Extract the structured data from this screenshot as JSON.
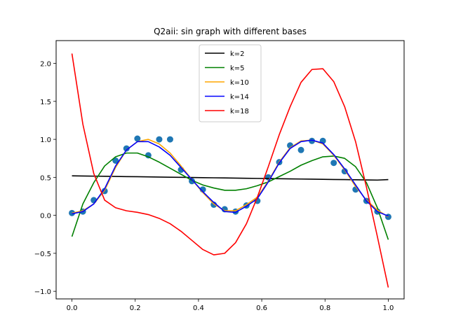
{
  "chart_data": {
    "type": "line",
    "title": "Q2aii: sin graph with different bases",
    "xlabel": "",
    "ylabel": "",
    "xlim": [
      -0.05,
      1.05
    ],
    "ylim": [
      -1.1,
      2.3
    ],
    "grid": false,
    "legend_position": "upper center",
    "xticks": [
      0.0,
      0.2,
      0.4,
      0.6,
      0.8,
      1.0
    ],
    "xtick_labels": [
      "0.0",
      "0.2",
      "0.4",
      "0.6",
      "0.8",
      "1.0"
    ],
    "yticks": [
      -1.0,
      -0.5,
      0.0,
      0.5,
      1.0,
      1.5,
      2.0
    ],
    "ytick_labels": [
      "−1.0",
      "−0.5",
      "0.0",
      "0.5",
      "1.0",
      "1.5",
      "2.0"
    ],
    "scatter": {
      "color": "#1f77b4",
      "x": [
        0.0,
        0.0345,
        0.069,
        0.1034,
        0.1379,
        0.1724,
        0.2069,
        0.2414,
        0.2759,
        0.3103,
        0.3448,
        0.3793,
        0.4138,
        0.4483,
        0.4828,
        0.5172,
        0.5517,
        0.5862,
        0.6207,
        0.6552,
        0.6897,
        0.7241,
        0.7586,
        0.7931,
        0.8276,
        0.8621,
        0.8966,
        0.931,
        0.9655,
        1.0
      ],
      "y": [
        0.03,
        0.05,
        0.2,
        0.32,
        0.72,
        0.88,
        1.01,
        0.79,
        1.0,
        1.0,
        0.6,
        0.45,
        0.34,
        0.14,
        0.08,
        0.05,
        0.13,
        0.19,
        0.5,
        0.7,
        0.92,
        0.86,
        0.98,
        0.98,
        0.69,
        0.58,
        0.34,
        0.19,
        0.05,
        -0.02
      ]
    },
    "x": [
      0.0,
      0.0345,
      0.069,
      0.1034,
      0.1379,
      0.1724,
      0.2069,
      0.2414,
      0.2759,
      0.3103,
      0.3448,
      0.3793,
      0.4138,
      0.4483,
      0.4828,
      0.5172,
      0.5517,
      0.5862,
      0.6207,
      0.6552,
      0.6897,
      0.7241,
      0.7586,
      0.7931,
      0.8276,
      0.8621,
      0.8966,
      0.931,
      0.9655,
      1.0
    ],
    "series": [
      {
        "name": "k=2",
        "color": "#000000",
        "values": [
          0.52,
          0.518,
          0.516,
          0.514,
          0.512,
          0.51,
          0.508,
          0.506,
          0.504,
          0.502,
          0.5,
          0.498,
          0.496,
          0.494,
          0.492,
          0.49,
          0.488,
          0.486,
          0.484,
          0.482,
          0.48,
          0.478,
          0.476,
          0.474,
          0.472,
          0.47,
          0.468,
          0.466,
          0.464,
          0.47
        ]
      },
      {
        "name": "k=5",
        "color": "#008000",
        "values": [
          -0.28,
          0.15,
          0.43,
          0.65,
          0.77,
          0.82,
          0.82,
          0.77,
          0.7,
          0.62,
          0.54,
          0.46,
          0.4,
          0.36,
          0.33,
          0.33,
          0.35,
          0.39,
          0.44,
          0.51,
          0.58,
          0.66,
          0.72,
          0.77,
          0.78,
          0.75,
          0.64,
          0.43,
          0.1,
          -0.32
        ]
      },
      {
        "name": "k=10",
        "color": "#ffa500",
        "values": [
          0.03,
          0.06,
          0.15,
          0.33,
          0.63,
          0.86,
          0.97,
          1.0,
          0.94,
          0.82,
          0.65,
          0.47,
          0.3,
          0.15,
          0.06,
          0.06,
          0.14,
          0.24,
          0.45,
          0.7,
          0.89,
          0.98,
          0.99,
          0.94,
          0.79,
          0.6,
          0.38,
          0.2,
          0.07,
          -0.02
        ]
      },
      {
        "name": "k=14",
        "color": "#0000ff",
        "values": [
          0.02,
          0.05,
          0.15,
          0.35,
          0.65,
          0.86,
          0.97,
          0.97,
          0.9,
          0.79,
          0.63,
          0.47,
          0.31,
          0.17,
          0.05,
          0.04,
          0.12,
          0.22,
          0.44,
          0.69,
          0.88,
          0.97,
          0.99,
          0.95,
          0.8,
          0.61,
          0.4,
          0.19,
          0.05,
          -0.01
        ]
      },
      {
        "name": "k=18",
        "color": "#ff0000",
        "values": [
          2.13,
          1.2,
          0.55,
          0.2,
          0.1,
          0.06,
          0.04,
          0.01,
          -0.04,
          -0.11,
          -0.21,
          -0.33,
          -0.45,
          -0.52,
          -0.5,
          -0.36,
          -0.11,
          0.24,
          0.64,
          1.06,
          1.43,
          1.75,
          1.92,
          1.93,
          1.76,
          1.43,
          0.97,
          0.37,
          -0.28,
          -0.95
        ]
      }
    ]
  }
}
